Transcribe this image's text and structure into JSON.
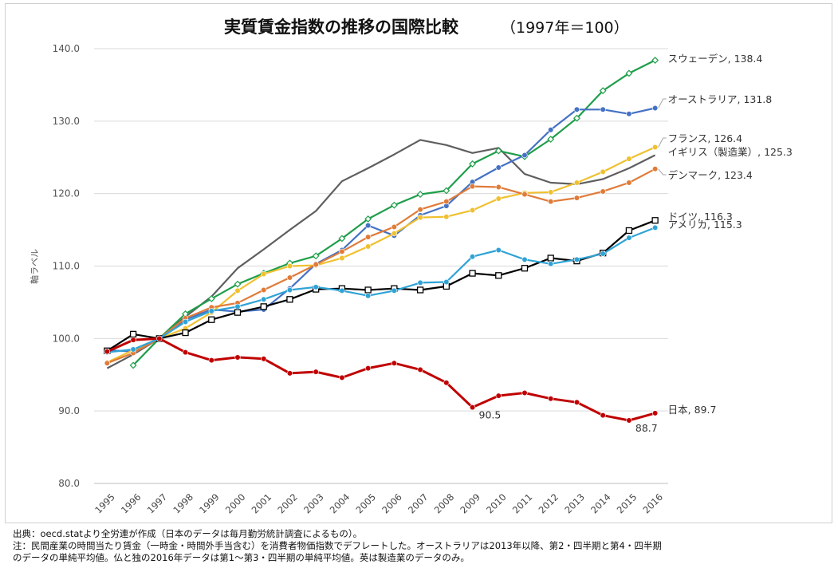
{
  "chart_data": {
    "type": "line",
    "title": "実質賃金指数の推移の国際比較",
    "subtitle": "（1997年＝100）",
    "xlabel": "",
    "ylabel": "軸ラベル",
    "ylim": [
      80,
      140
    ],
    "yticks": [
      "80.0",
      "90.0",
      "100.0",
      "110.0",
      "120.0",
      "130.0",
      "140.0"
    ],
    "grid": true,
    "legend": "none (series labeled at line ends)",
    "x": [
      "1995",
      "1996",
      "1997",
      "1998",
      "1999",
      "2000",
      "2001",
      "2002",
      "2003",
      "2004",
      "2005",
      "2006",
      "2007",
      "2008",
      "2009",
      "2010",
      "2011",
      "2012",
      "2013",
      "2014",
      "2015",
      "2016"
    ],
    "series": [
      {
        "name": "イギリス（製造業）",
        "end_label": "イギリス（製造業）, 125.3",
        "color": "#5f5f5f",
        "marker": "none",
        "values": [
          95.9,
          97.8,
          100,
          103.0,
          105.8,
          109.7,
          112.3,
          115.0,
          117.6,
          121.7,
          123.5,
          125.4,
          127.4,
          126.7,
          125.6,
          126.3,
          122.7,
          121.5,
          121.3,
          122.0,
          123.5,
          125.3
        ]
      },
      {
        "name": "スウェーデン",
        "end_label": "スウェーデン, 138.4",
        "color": "#1f9e4a",
        "marker": "diamond",
        "values": [
          null,
          96.3,
          100,
          103.4,
          105.5,
          107.5,
          109.0,
          110.4,
          111.4,
          113.8,
          116.5,
          118.4,
          119.9,
          120.4,
          124.1,
          125.9,
          125.1,
          127.5,
          130.4,
          134.2,
          136.6,
          138.4
        ]
      },
      {
        "name": "オーストラリア",
        "end_label": "オーストラリア, 131.8",
        "color": "#4472c4",
        "marker": "circle",
        "values": [
          98.4,
          98.2,
          100,
          102.6,
          104.0,
          103.7,
          104.0,
          106.9,
          110.3,
          112.2,
          115.6,
          114.2,
          117.0,
          118.3,
          121.6,
          123.6,
          125.3,
          128.8,
          131.6,
          131.6,
          131.0,
          131.8
        ]
      },
      {
        "name": "フランス",
        "end_label": "フランス, 126.4",
        "color": "#f0c030",
        "marker": "circle",
        "values": [
          96.7,
          98.4,
          100,
          101.4,
          103.6,
          106.6,
          108.9,
          110.0,
          110.1,
          111.1,
          112.7,
          114.5,
          116.7,
          116.8,
          117.7,
          119.3,
          120.1,
          120.2,
          121.5,
          123.0,
          124.8,
          126.4
        ]
      },
      {
        "name": "デンマーク",
        "end_label": "デンマーク, 123.4",
        "color": "#e07b39",
        "marker": "circle",
        "values": [
          96.6,
          98.0,
          100,
          102.8,
          104.3,
          104.9,
          106.7,
          108.4,
          110.2,
          112.0,
          114.0,
          115.4,
          117.8,
          118.9,
          121.0,
          120.9,
          119.9,
          118.9,
          119.4,
          120.3,
          121.5,
          123.4
        ]
      },
      {
        "name": "ドイツ",
        "end_label": "ドイツ, 116.3",
        "color": "#000000",
        "marker": "square",
        "values": [
          98.3,
          100.6,
          100,
          100.8,
          102.6,
          103.6,
          104.4,
          105.4,
          106.8,
          106.9,
          106.7,
          106.9,
          106.7,
          107.2,
          109.0,
          108.7,
          109.7,
          111.1,
          110.7,
          111.8,
          114.9,
          116.3
        ]
      },
      {
        "name": "アメリカ",
        "end_label": "アメリカ, 115.3",
        "color": "#2fa3d6",
        "marker": "circle",
        "values": [
          98.1,
          98.5,
          100,
          102.3,
          103.8,
          104.4,
          105.4,
          106.7,
          107.1,
          106.6,
          105.9,
          106.6,
          107.7,
          107.8,
          111.3,
          112.2,
          110.9,
          110.3,
          110.9,
          111.7,
          113.9,
          115.3
        ]
      },
      {
        "name": "日本",
        "end_label": "日本, 89.7",
        "color": "#c00000",
        "marker": "circle",
        "values": [
          98.2,
          99.8,
          100,
          98.1,
          97.0,
          97.4,
          97.2,
          95.2,
          95.4,
          94.6,
          95.9,
          96.6,
          95.7,
          93.9,
          90.5,
          92.1,
          92.5,
          91.7,
          91.2,
          89.4,
          88.7,
          89.7
        ]
      }
    ],
    "annotations": [
      {
        "text": "90.5",
        "series": "日本",
        "x": "2009",
        "value": 90.5
      },
      {
        "text": "88.7",
        "series": "日本",
        "x": "2015",
        "value": 88.7
      }
    ]
  },
  "footnotes": [
    "出典：oecd.statより全労連が作成（日本のデータは毎月勤労統計調査によるもの）。",
    "注：民間産業の時間当たり賃金（一時金・時間外手当含む）を消費者物価指数でデフレートした。オーストラリアは2013年以降、第2・四半期と第4・四半期",
    "のデータの単純平均値。仏と独の2016年データは第1〜第3・四半期の単純平均値。英は製造業のデータのみ。"
  ]
}
